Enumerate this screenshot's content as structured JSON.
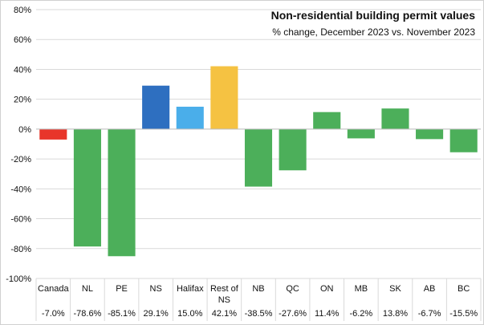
{
  "chart_data": {
    "type": "bar",
    "title": "Non-residential building permit values",
    "subtitle": "% change, December 2023 vs. November 2023",
    "categories": [
      "Canada",
      "NL",
      "PE",
      "NS",
      "Halifax",
      "Rest of NS",
      "NB",
      "QC",
      "ON",
      "MB",
      "SK",
      "AB",
      "BC"
    ],
    "category_lines": [
      [
        "Canada"
      ],
      [
        "NL"
      ],
      [
        "PE"
      ],
      [
        "NS"
      ],
      [
        "Halifax"
      ],
      [
        "Rest of",
        "NS"
      ],
      [
        "NB"
      ],
      [
        "QC"
      ],
      [
        "ON"
      ],
      [
        "MB"
      ],
      [
        "SK"
      ],
      [
        "AB"
      ],
      [
        "BC"
      ]
    ],
    "values": [
      -7.0,
      -78.6,
      -85.1,
      29.1,
      15.0,
      42.1,
      -38.5,
      -27.6,
      11.4,
      -6.2,
      13.8,
      -6.7,
      -15.5
    ],
    "value_labels": [
      "-7.0%",
      "-78.6%",
      "-85.1%",
      "29.1%",
      "15.0%",
      "42.1%",
      "-38.5%",
      "-27.6%",
      "11.4%",
      "-6.2%",
      "13.8%",
      "-6.7%",
      "-15.5%"
    ],
    "bar_colors": [
      "#e8352a",
      "#4caf5a",
      "#4caf5a",
      "#2e6fc0",
      "#4aaeea",
      "#f5c242",
      "#4caf5a",
      "#4caf5a",
      "#4caf5a",
      "#4caf5a",
      "#4caf5a",
      "#4caf5a",
      "#4caf5a"
    ],
    "y_ticks": [
      80,
      60,
      40,
      20,
      0,
      -20,
      -40,
      -60,
      -80,
      -100
    ],
    "y_tick_labels": [
      "80%",
      "60%",
      "40%",
      "20%",
      "0%",
      "-20%",
      "-40%",
      "-60%",
      "-80%",
      "-100%"
    ],
    "ylim": [
      -100,
      80
    ],
    "grid": true,
    "xlabel": "",
    "ylabel": ""
  }
}
